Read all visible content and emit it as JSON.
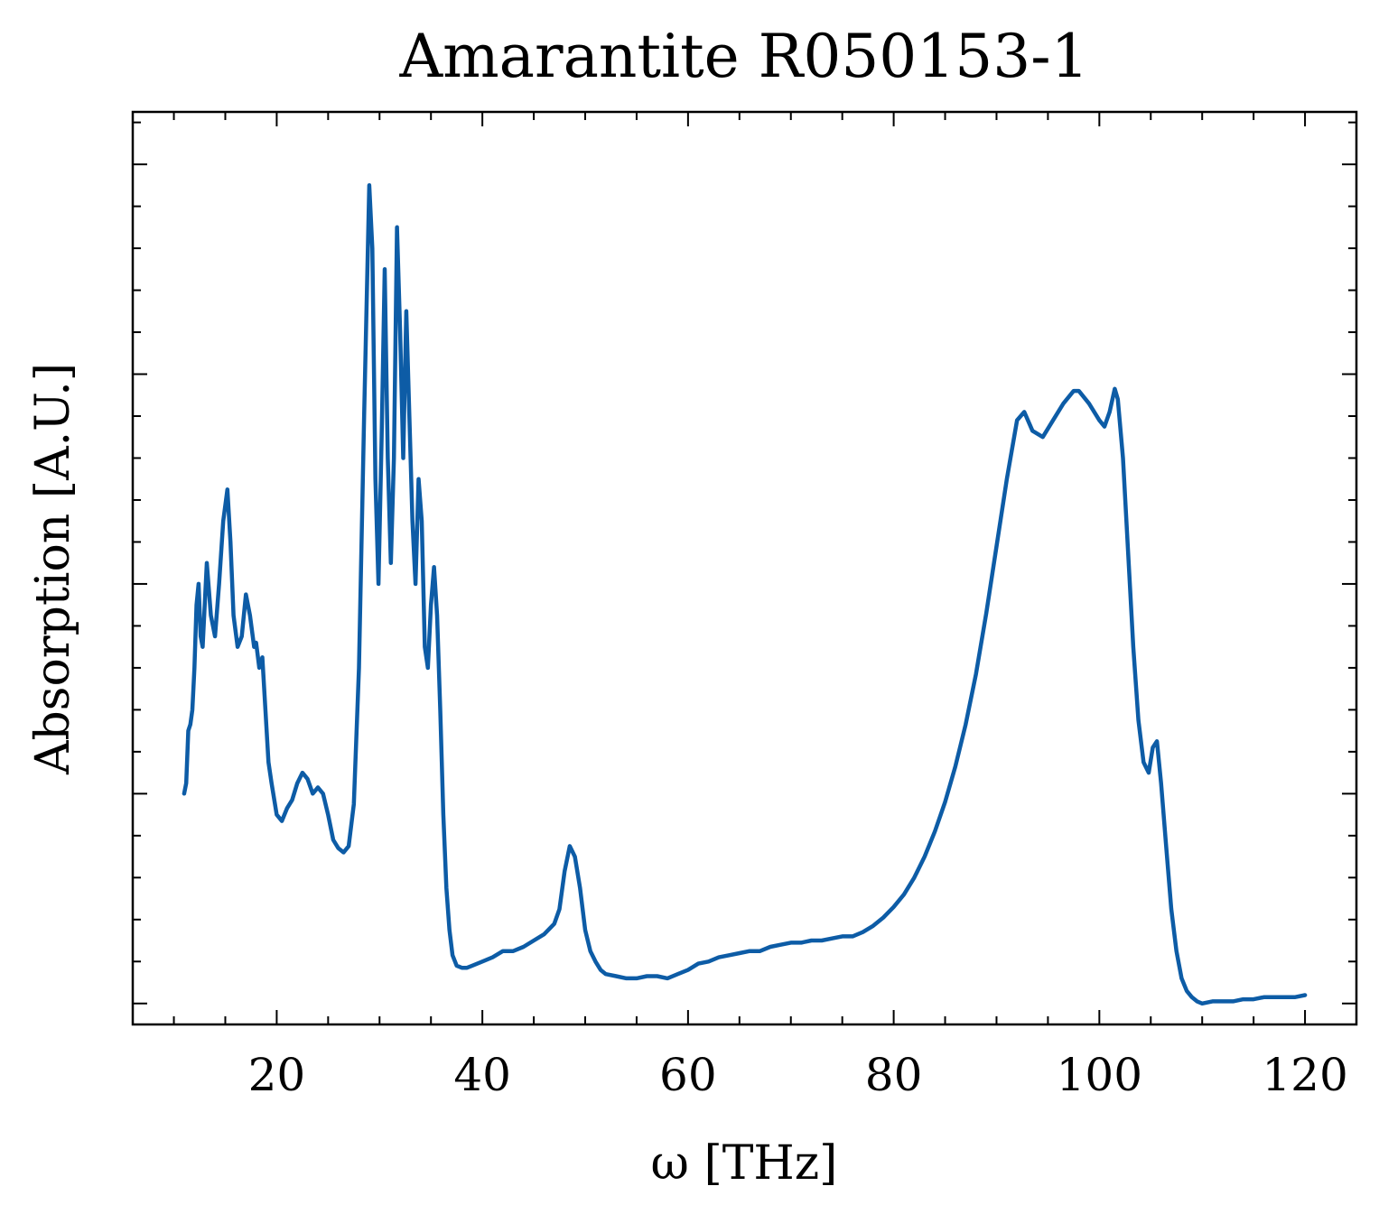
{
  "chart_data": {
    "type": "line",
    "title": "Amarantite R050153-1",
    "xlabel": "ω [THz]",
    "ylabel": "Absorption [A.U.]",
    "xlim": [
      6,
      125
    ],
    "ylim": [
      -0.1,
      4.25
    ],
    "x_ticks": [
      20,
      40,
      60,
      80,
      100,
      120
    ],
    "y_ticks": [
      0,
      1,
      2,
      3,
      4
    ],
    "y_tick_labels_shown": false,
    "grid": false,
    "legend": "none",
    "line_color": "#0d5ca6",
    "series": [
      {
        "x": [
          11.0,
          11.2,
          11.4,
          11.6,
          11.8,
          12.0,
          12.2,
          12.4,
          12.6,
          12.8,
          13.0,
          13.2,
          13.6,
          14.0,
          14.4,
          14.8,
          15.2,
          15.5,
          15.8,
          16.2,
          16.6,
          17.0,
          17.4,
          17.8,
          18.0,
          18.3,
          18.6,
          18.9,
          19.2,
          19.5,
          20.0,
          20.5,
          21.0,
          21.5,
          22.0,
          22.5,
          23.0,
          23.5,
          24.0,
          24.5,
          25.0,
          25.5,
          26.0,
          26.5,
          27.0,
          27.5,
          28.0,
          28.5,
          29.0,
          29.3,
          29.6,
          29.9,
          30.2,
          30.5,
          30.8,
          31.1,
          31.4,
          31.7,
          32.0,
          32.3,
          32.6,
          32.9,
          33.2,
          33.5,
          33.8,
          34.1,
          34.4,
          34.7,
          35.0,
          35.3,
          35.6,
          35.9,
          36.2,
          36.5,
          36.8,
          37.1,
          37.5,
          38.0,
          38.5,
          39.0,
          40.0,
          41.0,
          42.0,
          43.0,
          44.0,
          45.0,
          46.0,
          47.0,
          47.5,
          48.0,
          48.5,
          49.0,
          49.5,
          50.0,
          50.5,
          51.0,
          51.5,
          52.0,
          53.0,
          54.0,
          55.0,
          56.0,
          57.0,
          58.0,
          59.0,
          60.0,
          61.0,
          62.0,
          63.0,
          64.0,
          65.0,
          66.0,
          67.0,
          68.0,
          69.0,
          70.0,
          71.0,
          72.0,
          73.0,
          74.0,
          75.0,
          76.0,
          77.0,
          78.0,
          79.0,
          80.0,
          81.0,
          82.0,
          83.0,
          84.0,
          85.0,
          86.0,
          87.0,
          88.0,
          89.0,
          90.0,
          91.0,
          92.0,
          92.7,
          93.5,
          94.5,
          95.5,
          96.5,
          97.5,
          98.0,
          99.0,
          100.0,
          100.5,
          101.0,
          101.5,
          101.8,
          102.3,
          102.8,
          103.3,
          103.8,
          104.3,
          104.8,
          105.2,
          105.6,
          106.0,
          106.5,
          107.0,
          107.5,
          108.0,
          108.5,
          109.0,
          109.5,
          110.0,
          111.0,
          112.0,
          113.0,
          114.0,
          115.0,
          116.0,
          117.0,
          118.0,
          119.0,
          120.0
        ],
        "y": [
          1.0,
          1.05,
          1.3,
          1.33,
          1.4,
          1.6,
          1.9,
          2.0,
          1.75,
          1.7,
          1.9,
          2.1,
          1.85,
          1.75,
          2.0,
          2.3,
          2.45,
          2.2,
          1.85,
          1.7,
          1.75,
          1.95,
          1.85,
          1.7,
          1.72,
          1.6,
          1.65,
          1.4,
          1.15,
          1.05,
          0.9,
          0.87,
          0.93,
          0.97,
          1.05,
          1.1,
          1.07,
          1.0,
          1.03,
          1.0,
          0.9,
          0.78,
          0.74,
          0.72,
          0.75,
          0.95,
          1.6,
          2.8,
          3.9,
          3.6,
          2.5,
          2.0,
          2.7,
          3.5,
          2.6,
          2.1,
          2.6,
          3.7,
          3.2,
          2.6,
          3.3,
          2.8,
          2.3,
          2.0,
          2.5,
          2.3,
          1.7,
          1.6,
          1.9,
          2.08,
          1.85,
          1.4,
          0.9,
          0.55,
          0.35,
          0.23,
          0.18,
          0.17,
          0.17,
          0.18,
          0.2,
          0.22,
          0.25,
          0.25,
          0.27,
          0.3,
          0.33,
          0.38,
          0.45,
          0.63,
          0.75,
          0.7,
          0.55,
          0.35,
          0.25,
          0.2,
          0.16,
          0.14,
          0.13,
          0.12,
          0.12,
          0.13,
          0.13,
          0.12,
          0.14,
          0.16,
          0.19,
          0.2,
          0.22,
          0.23,
          0.24,
          0.25,
          0.25,
          0.27,
          0.28,
          0.29,
          0.29,
          0.3,
          0.3,
          0.31,
          0.32,
          0.32,
          0.34,
          0.37,
          0.41,
          0.46,
          0.52,
          0.6,
          0.7,
          0.82,
          0.96,
          1.13,
          1.33,
          1.57,
          1.86,
          2.18,
          2.5,
          2.78,
          2.82,
          2.73,
          2.7,
          2.78,
          2.86,
          2.92,
          2.92,
          2.86,
          2.78,
          2.75,
          2.82,
          2.93,
          2.88,
          2.6,
          2.15,
          1.7,
          1.35,
          1.15,
          1.1,
          1.22,
          1.25,
          1.05,
          0.75,
          0.45,
          0.25,
          0.12,
          0.06,
          0.03,
          0.01,
          0.0,
          0.01,
          0.01,
          0.01,
          0.02,
          0.02,
          0.03,
          0.03,
          0.03,
          0.03,
          0.04
        ]
      }
    ]
  }
}
